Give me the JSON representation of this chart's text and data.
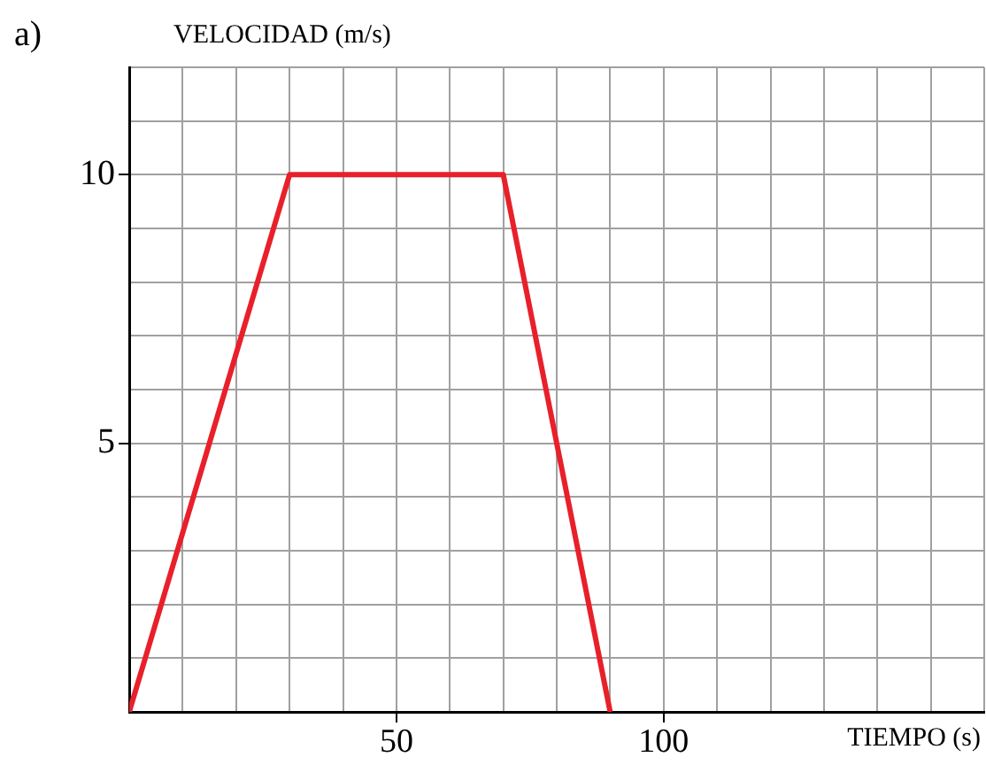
{
  "chart_data": {
    "type": "line",
    "xlabel": "TIEMPO (s)",
    "ylabel": "VELOCIDAD (m/s)",
    "annotations": [
      "a)"
    ],
    "series": [
      {
        "color": "#e8202a",
        "x": [
          0,
          30,
          70,
          90
        ],
        "values": [
          0,
          10,
          10,
          0
        ]
      }
    ],
    "xlim": [
      0,
      160
    ],
    "xticks": [
      {
        "value": 0,
        "label": null
      },
      {
        "value": 10,
        "label": null
      },
      {
        "value": 20,
        "label": null
      },
      {
        "value": 30,
        "label": null
      },
      {
        "value": 40,
        "label": null
      },
      50,
      {
        "value": 60,
        "label": null
      },
      {
        "value": 70,
        "label": null
      },
      {
        "value": 80,
        "label": null
      },
      {
        "value": 90,
        "label": null
      },
      100,
      {
        "value": 110,
        "label": null
      },
      {
        "value": 120,
        "label": null
      },
      {
        "value": 130,
        "label": null
      },
      {
        "value": 140,
        "label": null
      },
      {
        "value": 150,
        "label": null
      },
      {
        "value": 160,
        "label": null
      }
    ],
    "ylim": [
      0,
      12
    ],
    "yticks": [
      {
        "value": 0,
        "label": null
      },
      {
        "value": 1,
        "label": null
      },
      {
        "value": 2,
        "label": null
      },
      {
        "value": 3,
        "label": null
      },
      {
        "value": 4,
        "label": null
      },
      5,
      {
        "value": 6,
        "label": null
      },
      {
        "value": 7,
        "label": null
      },
      {
        "value": 8,
        "label": null
      },
      {
        "value": 9,
        "label": null
      },
      10,
      {
        "value": 11,
        "label": null
      },
      {
        "value": 12,
        "label": null
      }
    ],
    "grid": true,
    "legend": false,
    "marker": "none",
    "line_style": "solid"
  }
}
